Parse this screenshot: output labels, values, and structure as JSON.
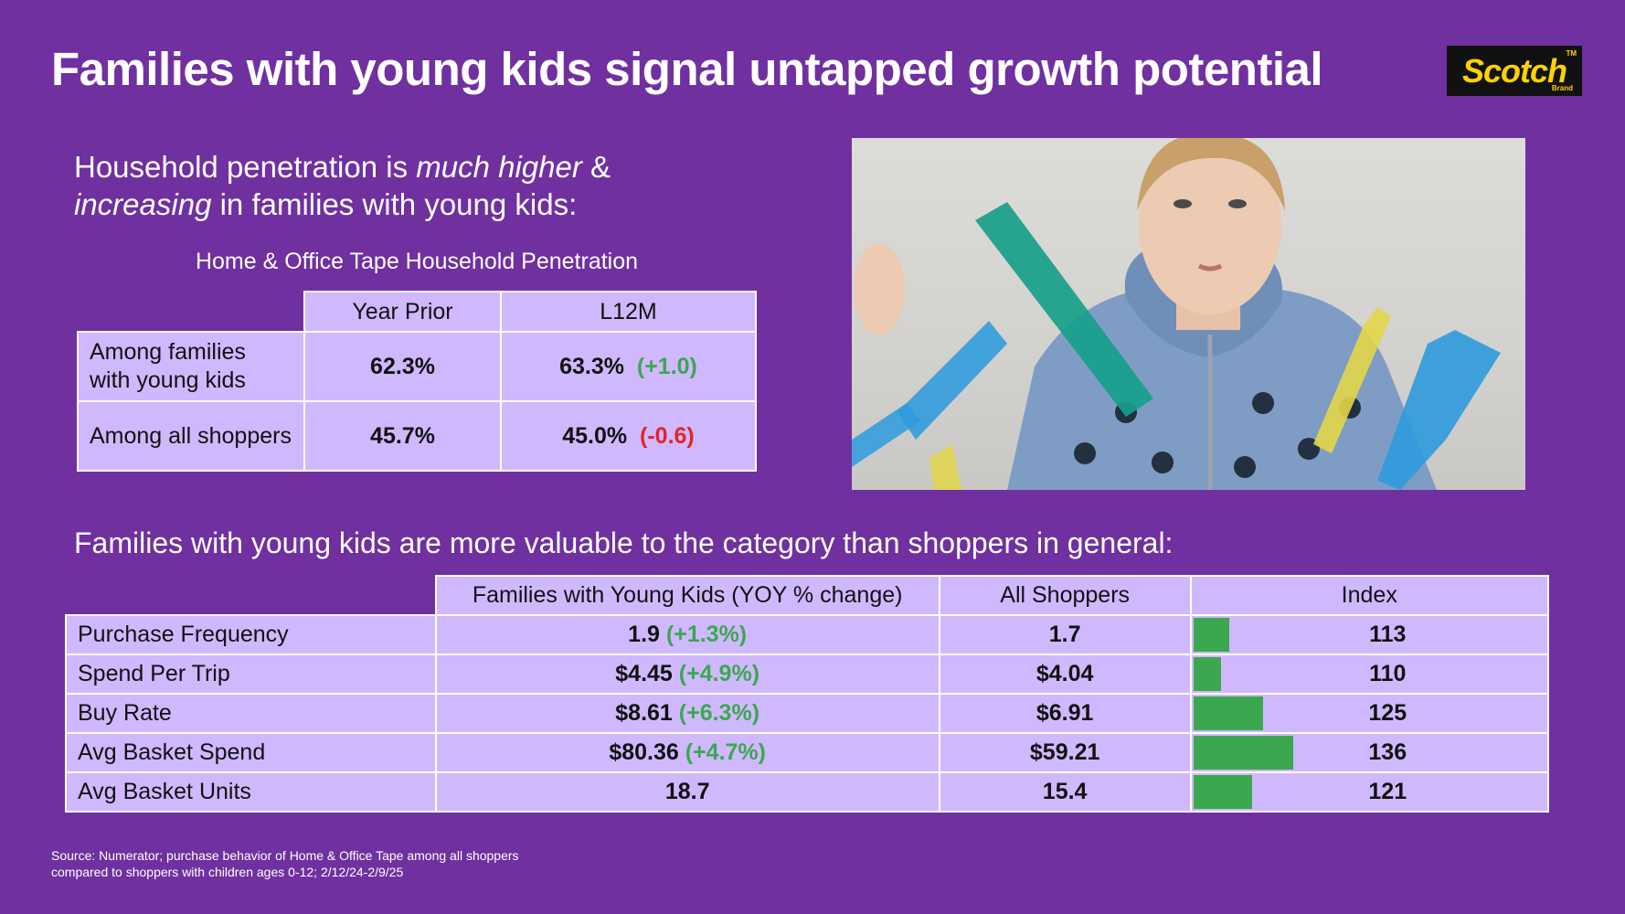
{
  "title": "Families with young kids signal untapped growth potential",
  "logo": {
    "text": "Scotch",
    "tm": "TM",
    "sub": "Brand"
  },
  "subhead": {
    "part1": "Household penetration is ",
    "em1": "much higher",
    "part2": " & ",
    "em2": "increasing",
    "part3": " in families with young kids:"
  },
  "table1": {
    "caption": "Home & Office Tape Household Penetration",
    "headers": [
      "Year Prior",
      "L12M"
    ],
    "rows": [
      {
        "label": "Among families with young kids",
        "year_prior": "62.3%",
        "l12m": "63.3%",
        "change": "(+1.0)",
        "change_dir": "pos"
      },
      {
        "label": "Among all shoppers",
        "year_prior": "45.7%",
        "l12m": "45.0%",
        "change": "(-0.6)",
        "change_dir": "neg"
      }
    ]
  },
  "subhead2": "Families with young kids are more valuable to the category than shoppers in general:",
  "table2": {
    "headers": [
      "Families with Young Kids (YOY % change)",
      "All Shoppers",
      "Index"
    ],
    "rows": [
      {
        "label": "Purchase Frequency",
        "families": "1.9",
        "change": "(+1.3%)",
        "all": "1.7",
        "index": "113"
      },
      {
        "label": "Spend Per Trip",
        "families": "$4.45",
        "change": "(+4.9%)",
        "all": "$4.04",
        "index": "110"
      },
      {
        "label": "Buy Rate",
        "families": "$8.61",
        "change": "(+6.3%)",
        "all": "$6.91",
        "index": "125"
      },
      {
        "label": "Avg Basket Spend",
        "families": "$80.36",
        "change": "(+4.7%)",
        "all": "$59.21",
        "index": "136"
      },
      {
        "label": "Avg Basket Units",
        "families": "18.7",
        "change": "",
        "all": "15.4",
        "index": "121"
      }
    ]
  },
  "source": "Source: Numerator; purchase behavior of Home & Office Tape among all shoppers compared to shoppers with children ages 0-12; 2/12/24-2/9/25",
  "colors": {
    "background": "#7030A0",
    "cell": "#D0B8FF",
    "positive": "#3BA84F",
    "negative": "#E0242A",
    "logo_bg": "#111111",
    "logo_text": "#FFD200"
  }
}
